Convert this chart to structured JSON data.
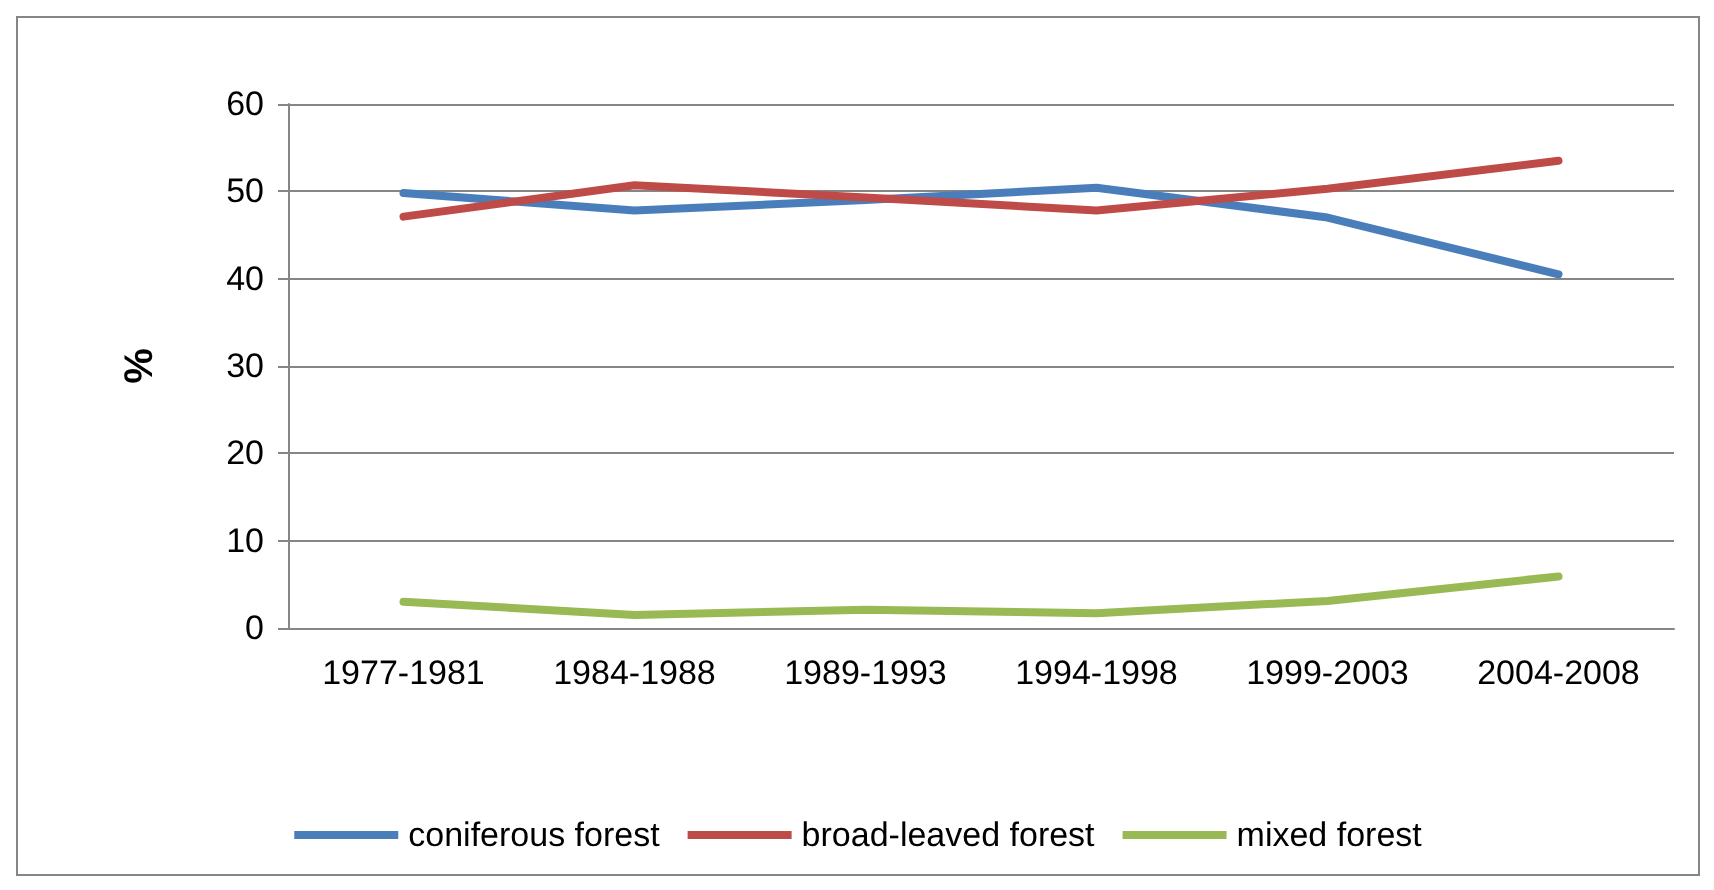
{
  "chart_data": {
    "type": "line",
    "ylabel": "%",
    "categories": [
      "1977-1981",
      "1984-1988",
      "1989-1993",
      "1994-1998",
      "1999-2003",
      "2004-2008"
    ],
    "series": [
      {
        "name": "coniferous forest",
        "color": "#4a7ebb",
        "values": [
          49.8,
          47.8,
          49.0,
          50.4,
          47.0,
          40.5
        ]
      },
      {
        "name": "broad-leaved forest",
        "color": "#be4b48",
        "values": [
          47.1,
          50.7,
          49.3,
          47.8,
          50.3,
          53.5
        ]
      },
      {
        "name": "mixed forest",
        "color": "#98b954",
        "values": [
          3.0,
          1.5,
          2.1,
          1.7,
          3.1,
          5.9
        ]
      }
    ],
    "ylim": [
      0,
      60
    ],
    "yticks": [
      0,
      10,
      20,
      30,
      40,
      50,
      60
    ],
    "grid": "y",
    "legend": "bottom",
    "marker": "none",
    "line_style": "solid"
  }
}
